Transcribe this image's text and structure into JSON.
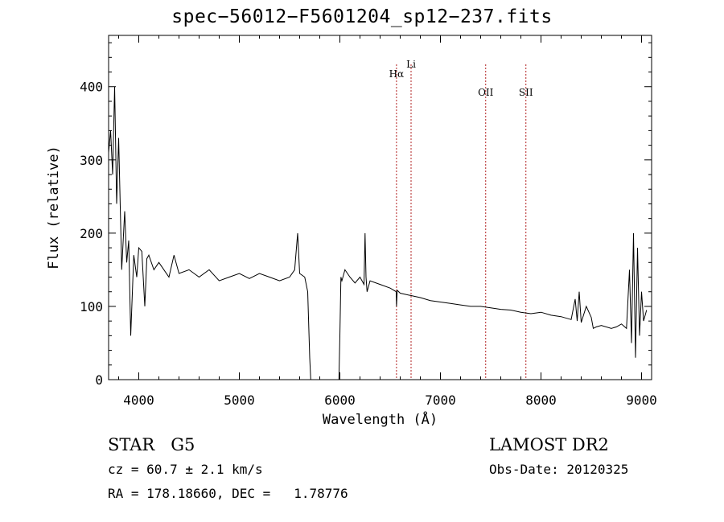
{
  "chart_data": {
    "type": "line",
    "title": "spec−56012−F5601204_sp12−237.fits",
    "xlabel": "Wavelength (Å)",
    "ylabel": "Flux (relative)",
    "xlim": [
      3700,
      9100
    ],
    "ylim": [
      0,
      470
    ],
    "xticks": [
      4000,
      5000,
      6000,
      7000,
      8000,
      9000
    ],
    "yticks": [
      0,
      100,
      200,
      300,
      400
    ],
    "grid": false,
    "series": [
      {
        "x": [
          3700,
          3720,
          3740,
          3760,
          3780,
          3800,
          3830,
          3860,
          3880,
          3900,
          3920,
          3950,
          3980,
          4000,
          4030,
          4060,
          4080,
          4100,
          4150,
          4200,
          4300,
          4350,
          4400,
          4500,
          4600,
          4700,
          4800,
          4900,
          5000,
          5100,
          5200,
          5300,
          5400,
          5500,
          5550,
          5580,
          5600,
          5650,
          5680,
          5700,
          5710,
          5720,
          5800,
          5900,
          5990,
          6000,
          6010,
          6020,
          6050,
          6100,
          6150,
          6200,
          6240,
          6250,
          6260,
          6270,
          6280,
          6300,
          6400,
          6500,
          6560,
          6563,
          6570,
          6600,
          6700,
          6800,
          6900,
          7000,
          7100,
          7200,
          7300,
          7400,
          7500,
          7600,
          7700,
          7800,
          7900,
          8000,
          8100,
          8200,
          8300,
          8340,
          8360,
          8380,
          8400,
          8450,
          8500,
          8520,
          8550,
          8600,
          8700,
          8750,
          8800,
          8850,
          8880,
          8900,
          8920,
          8940,
          8960,
          8980,
          9000,
          9020,
          9050
        ],
        "y": [
          310,
          340,
          280,
          400,
          240,
          330,
          150,
          230,
          160,
          190,
          60,
          170,
          140,
          180,
          175,
          100,
          165,
          170,
          150,
          160,
          140,
          170,
          145,
          150,
          140,
          150,
          135,
          140,
          145,
          138,
          145,
          140,
          135,
          140,
          150,
          200,
          145,
          140,
          120,
          30,
          0,
          0,
          0,
          0,
          0,
          60,
          140,
          135,
          150,
          140,
          132,
          140,
          130,
          200,
          140,
          120,
          125,
          135,
          130,
          125,
          120,
          100,
          122,
          118,
          115,
          112,
          108,
          106,
          104,
          102,
          100,
          100,
          98,
          96,
          95,
          92,
          90,
          92,
          88,
          86,
          82,
          110,
          80,
          120,
          78,
          100,
          85,
          70,
          72,
          74,
          70,
          72,
          76,
          70,
          150,
          50,
          200,
          30,
          180,
          60,
          120,
          80,
          95
        ]
      }
    ],
    "annotations": [
      {
        "label": "Hα",
        "x": 6563
      },
      {
        "label": "Li",
        "x": 6708
      },
      {
        "label": "OII",
        "x": 7450
      },
      {
        "label": "SII",
        "x": 7850
      }
    ],
    "annotation_color": "#b22222"
  },
  "info": {
    "line1_left": "STAR   G5",
    "line1_right": "LAMOST DR2",
    "line2_left": "cz = 60.7 ± 2.1 km/s",
    "line2_right": "Obs-Date: 20120325",
    "line3_left": "RA = 178.18660, DEC =   1.78776"
  }
}
